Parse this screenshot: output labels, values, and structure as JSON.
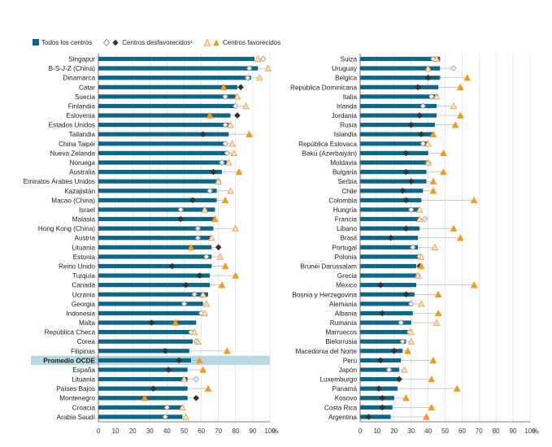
{
  "legend": {
    "all": "Todos los centros",
    "disadv": "Centros desfavorecidos¹",
    "adv": "Centros favorecidos"
  },
  "colors": {
    "bar": "#0d6686",
    "dark": "#333333",
    "disadv_open": "#bfbfbf",
    "adv_open": "#f5b26b",
    "adv_filled": "#f59a1b",
    "oecd_band": "#b7d8e2",
    "grid": "#d9d9d9"
  },
  "chart_data": [
    {
      "type": "bar",
      "panel": "left",
      "xlim": [
        0,
        100
      ],
      "ticks": [
        0,
        10,
        20,
        30,
        40,
        50,
        60,
        70,
        80,
        90,
        100
      ],
      "unit_label": "%",
      "highlight": "Promedio OCDE",
      "rows": [
        {
          "label": "Singapur",
          "all": 91,
          "dis": 96,
          "adv": 93,
          "dis_sig": false,
          "adv_sig": false
        },
        {
          "label": "B-S-J-Z (China)",
          "all": 93,
          "dis": 88,
          "adv": 99,
          "dis_sig": false,
          "adv_sig": false
        },
        {
          "label": "Dinamarca",
          "all": 89,
          "dis": 87,
          "adv": 94,
          "dis_sig": false,
          "adv_sig": false
        },
        {
          "label": "Catar",
          "all": 81,
          "dis": 83,
          "adv": 73,
          "dis_sig": true,
          "adv_sig": true
        },
        {
          "label": "Suecia",
          "all": 80,
          "dis": 74,
          "adv": 81,
          "dis_sig": false,
          "adv_sig": false
        },
        {
          "label": "Finlandia",
          "all": 80,
          "dis": 80,
          "adv": 86,
          "dis_sig": false,
          "adv_sig": false
        },
        {
          "label": "Eslovenia",
          "all": 77,
          "dis": 81,
          "adv": 65,
          "dis_sig": true,
          "adv_sig": true
        },
        {
          "label": "Estados Unidos",
          "all": 76,
          "dis": 74,
          "adv": 77,
          "dis_sig": false,
          "adv_sig": false
        },
        {
          "label": "Tailandia",
          "all": 76,
          "dis": 61,
          "adv": 88,
          "dis_sig": true,
          "adv_sig": true
        },
        {
          "label": "China Taipéi",
          "all": 75,
          "dis": 74,
          "adv": 78,
          "dis_sig": false,
          "adv_sig": false
        },
        {
          "label": "Nueva Zelanda",
          "all": 75,
          "dis": 75,
          "adv": 79,
          "dis_sig": false,
          "adv_sig": false
        },
        {
          "label": "Noruega",
          "all": 75,
          "dis": 72,
          "adv": 76,
          "dis_sig": false,
          "adv_sig": false
        },
        {
          "label": "Australia",
          "all": 72,
          "dis": 67,
          "adv": 82,
          "dis_sig": true,
          "adv_sig": true
        },
        {
          "label": "Emiratos Árabes Unidos",
          "all": 71,
          "dis": 70,
          "adv": 70,
          "dis_sig": false,
          "adv_sig": false
        },
        {
          "label": "Kazajistán",
          "all": 69,
          "dis": 65,
          "adv": 77,
          "dis_sig": false,
          "adv_sig": false
        },
        {
          "label": "Macao (China)",
          "all": 69,
          "dis": 55,
          "adv": 74,
          "dis_sig": true,
          "adv_sig": true
        },
        {
          "label": "Israel",
          "all": 68,
          "dis": 48,
          "adv": 62,
          "dis_sig": false,
          "adv_sig": false
        },
        {
          "label": "Malasia",
          "all": 68,
          "dis": 48,
          "adv": 68,
          "dis_sig": true,
          "adv_sig": true
        },
        {
          "label": "Hong Kong (China)",
          "all": 67,
          "dis": 58,
          "adv": 80,
          "dis_sig": false,
          "adv_sig": false
        },
        {
          "label": "Austria",
          "all": 66,
          "dis": 58,
          "adv": 66,
          "dis_sig": false,
          "adv_sig": false
        },
        {
          "label": "Lituania",
          "all": 66,
          "dis": 70,
          "adv": 54,
          "dis_sig": true,
          "adv_sig": true
        },
        {
          "label": "Estonia",
          "all": 66,
          "dis": 63,
          "adv": 71,
          "dis_sig": false,
          "adv_sig": false
        },
        {
          "label": "Reino Unido",
          "all": 66,
          "dis": 43,
          "adv": 74,
          "dis_sig": true,
          "adv_sig": true
        },
        {
          "label": "Turquía",
          "all": 65,
          "dis": 59,
          "adv": 80,
          "dis_sig": true,
          "adv_sig": true
        },
        {
          "label": "Canadá",
          "all": 65,
          "dis": 51,
          "adv": 72,
          "dis_sig": true,
          "adv_sig": true
        },
        {
          "label": "Ucrania",
          "all": 64,
          "dis": 56,
          "adv": 61,
          "dis_sig": false,
          "adv_sig": false
        },
        {
          "label": "Georgia",
          "all": 61,
          "dis": 50,
          "adv": 63,
          "dis_sig": false,
          "adv_sig": false
        },
        {
          "label": "Indonesia",
          "all": 60,
          "dis": 60,
          "adv": 62,
          "dis_sig": false,
          "adv_sig": false
        },
        {
          "label": "Malta",
          "all": 57,
          "dis": 31,
          "adv": 45,
          "dis_sig": true,
          "adv_sig": true
        },
        {
          "label": "República Checa",
          "all": 55,
          "dis": 54,
          "adv": 56,
          "dis_sig": false,
          "adv_sig": false
        },
        {
          "label": "Corea",
          "all": 55,
          "dis": 57,
          "adv": 58,
          "dis_sig": false,
          "adv_sig": false
        },
        {
          "label": "Filipinas",
          "all": 53,
          "dis": 39,
          "adv": 75,
          "dis_sig": true,
          "adv_sig": true
        },
        {
          "label": "Promedio OCDE",
          "all": 54,
          "dis": 47,
          "adv": 59,
          "dis_sig": true,
          "adv_sig": true
        },
        {
          "label": "España",
          "all": 52,
          "dis": 41,
          "adv": 61,
          "dis_sig": true,
          "adv_sig": true
        },
        {
          "label": "Lituania",
          "all": 52,
          "dis": 57,
          "adv": 50,
          "dis_sig": false,
          "adv_sig": false
        },
        {
          "label": "Países Bajos",
          "all": 52,
          "dis": 32,
          "adv": 64,
          "dis_sig": true,
          "adv_sig": true
        },
        {
          "label": "Montenegro",
          "all": 52,
          "dis": 57,
          "adv": 27,
          "dis_sig": true,
          "adv_sig": true
        },
        {
          "label": "Croacia",
          "all": 49,
          "dis": 40,
          "adv": 49,
          "dis_sig": false,
          "adv_sig": false
        },
        {
          "label": "Arabia Saudí",
          "all": 49,
          "dis": 39,
          "adv": 51,
          "dis_sig": false,
          "adv_sig": false
        }
      ]
    },
    {
      "type": "bar",
      "panel": "right",
      "xlim": [
        0,
        100
      ],
      "ticks": [
        0,
        10,
        20,
        30,
        40,
        50,
        60,
        70,
        80,
        90,
        100
      ],
      "unit_label": "%",
      "rows": [
        {
          "label": "Suiza",
          "all": 47,
          "dis": 43,
          "adv": 45,
          "dis_sig": false,
          "adv_sig": false
        },
        {
          "label": "Uruguay",
          "all": 47,
          "dis": 55,
          "adv": 40,
          "dis_sig": false,
          "adv_sig": false
        },
        {
          "label": "Bélgica",
          "all": 47,
          "dis": 40,
          "adv": 63,
          "dis_sig": true,
          "adv_sig": true
        },
        {
          "label": "República Dominicana",
          "all": 46,
          "dis": 34,
          "adv": 59,
          "dis_sig": true,
          "adv_sig": true
        },
        {
          "label": "Italia",
          "all": 46,
          "dis": 42,
          "adv": 45,
          "dis_sig": false,
          "adv_sig": false
        },
        {
          "label": "Irlanda",
          "all": 45,
          "dis": 37,
          "adv": 55,
          "dis_sig": false,
          "adv_sig": false
        },
        {
          "label": "Jordania",
          "all": 45,
          "dis": 35,
          "adv": 59,
          "dis_sig": true,
          "adv_sig": true
        },
        {
          "label": "Rusia",
          "all": 44,
          "dis": 30,
          "adv": 56,
          "dis_sig": true,
          "adv_sig": true
        },
        {
          "label": "Islandia",
          "all": 43,
          "dis": 36,
          "adv": 43,
          "dis_sig": true,
          "adv_sig": true
        },
        {
          "label": "República Eslovaca",
          "all": 40,
          "dis": 37,
          "adv": 40,
          "dis_sig": false,
          "adv_sig": false
        },
        {
          "label": "Bakú (Azerbaiyán)",
          "all": 40,
          "dis": 27,
          "adv": 49,
          "dis_sig": true,
          "adv_sig": true
        },
        {
          "label": "Moldavia",
          "all": 40,
          "dis": 40,
          "adv": 40,
          "dis_sig": false,
          "adv_sig": false
        },
        {
          "label": "Bulgaria",
          "all": 39,
          "dis": 27,
          "adv": 49,
          "dis_sig": true,
          "adv_sig": true
        },
        {
          "label": "Serbia",
          "all": 39,
          "dis": 30,
          "adv": 43,
          "dis_sig": true,
          "adv_sig": true
        },
        {
          "label": "Chile",
          "all": 37,
          "dis": 25,
          "adv": 43,
          "dis_sig": true,
          "adv_sig": true
        },
        {
          "label": "Colombia",
          "all": 36,
          "dis": 27,
          "adv": 67,
          "dis_sig": true,
          "adv_sig": true
        },
        {
          "label": "Hungría",
          "all": 35,
          "dis": 30,
          "adv": 35,
          "dis_sig": false,
          "adv_sig": false
        },
        {
          "label": "Francia",
          "all": 35,
          "dis": 38,
          "adv": 35,
          "dis_sig": false,
          "adv_sig": false
        },
        {
          "label": "Líbano",
          "all": 35,
          "dis": 27,
          "adv": 55,
          "dis_sig": true,
          "adv_sig": true
        },
        {
          "label": "Brasil",
          "all": 34,
          "dis": 18,
          "adv": 59,
          "dis_sig": true,
          "adv_sig": true
        },
        {
          "label": "Portugal",
          "all": 34,
          "dis": 31,
          "adv": 44,
          "dis_sig": false,
          "adv_sig": false
        },
        {
          "label": "Polonia",
          "all": 34,
          "dis": 35,
          "adv": 36,
          "dis_sig": false,
          "adv_sig": false
        },
        {
          "label": "Brunéi Darussalam",
          "all": 33,
          "dis": 35,
          "adv": 36,
          "dis_sig": true,
          "adv_sig": true
        },
        {
          "label": "Grecia",
          "all": 33,
          "dis": 34,
          "adv": 34,
          "dis_sig": false,
          "adv_sig": false
        },
        {
          "label": "México",
          "all": 33,
          "dis": 12,
          "adv": 67,
          "dis_sig": true,
          "adv_sig": true
        },
        {
          "label": "Bosnia y Herzegovina",
          "all": 32,
          "dis": 27,
          "adv": 46,
          "dis_sig": true,
          "adv_sig": true
        },
        {
          "label": "Alemania",
          "all": 31,
          "dis": 30,
          "adv": 36,
          "dis_sig": false,
          "adv_sig": false
        },
        {
          "label": "Albania",
          "all": 31,
          "dis": 13,
          "adv": 46,
          "dis_sig": true,
          "adv_sig": true
        },
        {
          "label": "Rumanía",
          "all": 30,
          "dis": 24,
          "adv": 45,
          "dis_sig": false,
          "adv_sig": false
        },
        {
          "label": "Marruecos",
          "all": 28,
          "dis": 29,
          "adv": 30,
          "dis_sig": false,
          "adv_sig": false
        },
        {
          "label": "Bielorrusia",
          "all": 27,
          "dis": 25,
          "adv": 30,
          "dis_sig": false,
          "adv_sig": false
        },
        {
          "label": "Macedonia del Norte",
          "all": 25,
          "dis": 20,
          "adv": 28,
          "dis_sig": true,
          "adv_sig": true
        },
        {
          "label": "Perú",
          "all": 24,
          "dis": 12,
          "adv": 43,
          "dis_sig": true,
          "adv_sig": true
        },
        {
          "label": "Japón",
          "all": 23,
          "dis": 17,
          "adv": 26,
          "dis_sig": false,
          "adv_sig": false
        },
        {
          "label": "Luxemburgo",
          "all": 23,
          "dis": 23,
          "adv": 42,
          "dis_sig": true,
          "adv_sig": true
        },
        {
          "label": "Panamá",
          "all": 22,
          "dis": 11,
          "adv": 57,
          "dis_sig": true,
          "adv_sig": true
        },
        {
          "label": "Kosovo",
          "all": 20,
          "dis": 13,
          "adv": 27,
          "dis_sig": true,
          "adv_sig": true
        },
        {
          "label": "Costa Rica",
          "all": 19,
          "dis": 13,
          "adv": 42,
          "dis_sig": true,
          "adv_sig": true
        },
        {
          "label": "Argentina",
          "all": 18,
          "dis": 5,
          "adv": 39,
          "dis_sig": true,
          "adv_sig": true
        }
      ]
    }
  ]
}
